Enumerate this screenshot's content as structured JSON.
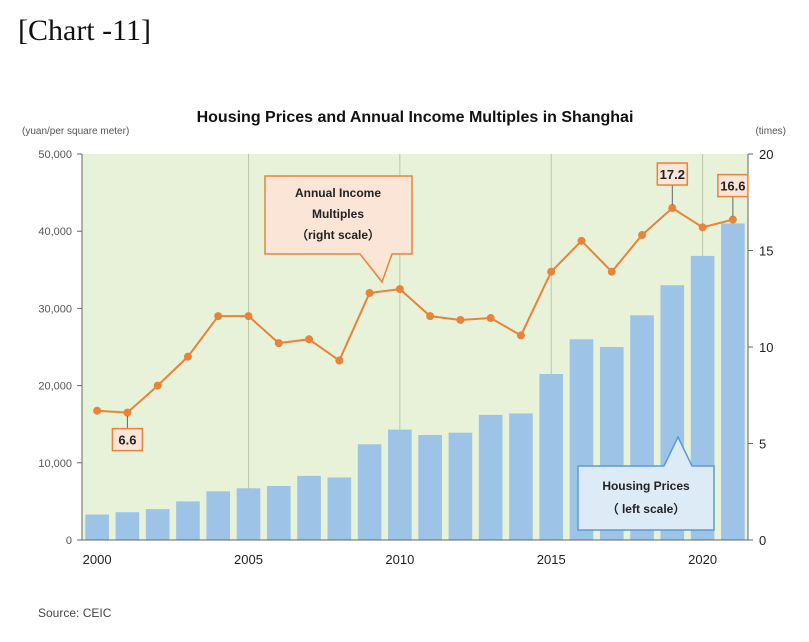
{
  "page": {
    "chart_label": "[Chart -11]",
    "source": "Source: CEIC"
  },
  "colors": {
    "plot_bg": "#e8f2d8",
    "bar": "#9dc3e6",
    "line": "#e8833a",
    "callout_orange_fill": "#fbe5d6",
    "callout_blue_fill": "#ddebf7"
  },
  "chart_data": {
    "type": "bar",
    "title": "Housing Prices and Annual Income Multiples in Shanghai",
    "left_axis_unit": "(yuan/per square meter)",
    "right_axis_unit": "(times)",
    "left_ylim": [
      0,
      50000
    ],
    "left_yticks": [
      "0",
      "10,000",
      "20,000",
      "30,000",
      "40,000",
      "50,000"
    ],
    "right_ylim": [
      0,
      20
    ],
    "right_yticks": [
      "0",
      "5",
      "10",
      "15",
      "20"
    ],
    "xlim": [
      2000,
      2021
    ],
    "xticks": [
      "2000",
      "2005",
      "2010",
      "2015",
      "2020"
    ],
    "grid": "vertical lines at 2005, 2010, 2015, 2020",
    "x": [
      2000,
      2001,
      2002,
      2003,
      2004,
      2005,
      2006,
      2007,
      2008,
      2009,
      2010,
      2011,
      2012,
      2013,
      2014,
      2015,
      2016,
      2017,
      2018,
      2019,
      2020,
      2021
    ],
    "series": [
      {
        "type": "bar",
        "axis": "left",
        "values": [
          3300,
          3600,
          4000,
          5000,
          6300,
          6700,
          7000,
          8300,
          8100,
          12400,
          14300,
          13600,
          13900,
          16200,
          16400,
          21500,
          26000,
          25000,
          29100,
          33000,
          36800,
          41000
        ]
      },
      {
        "type": "line",
        "axis": "right",
        "values": [
          6.7,
          6.6,
          8.0,
          9.5,
          11.6,
          11.6,
          10.2,
          10.4,
          9.3,
          12.8,
          13.0,
          11.6,
          11.4,
          11.5,
          10.6,
          13.9,
          15.5,
          13.9,
          15.8,
          17.2,
          16.2,
          16.6
        ]
      }
    ],
    "data_labels": [
      {
        "x": 2001,
        "text": "6.6"
      },
      {
        "x": 2019,
        "text": "17.2"
      },
      {
        "x": 2021,
        "text": "16.6"
      }
    ],
    "annotations": {
      "line_callout": [
        "Annual Income",
        "Multiples",
        "（right scale）"
      ],
      "bar_callout": [
        "Housing Prices",
        "（ left scale）"
      ]
    }
  }
}
